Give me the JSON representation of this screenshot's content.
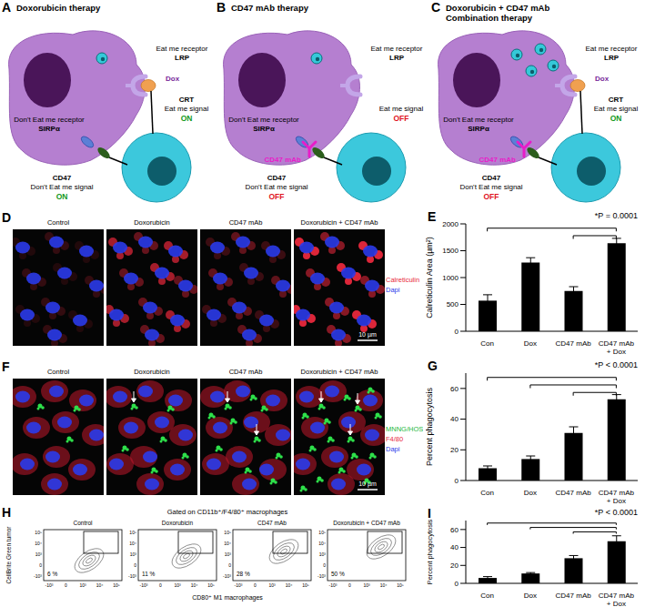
{
  "diagrams": [
    {
      "label": "A",
      "title": [
        "Doxorubicin therapy"
      ],
      "eat_me_receptor": "Eat me receptor",
      "lrp": "LRP",
      "dox": "Dox",
      "crt": "CRT",
      "eat_me_signal": "Eat me signal",
      "eat_me_status": "ON",
      "dont_eat_me_receptor": "Don't Eat me receptor",
      "sirpa": "SIRPα",
      "cd47": "CD47",
      "dont_eat_me_signal": "Don't Eat me signal",
      "dont_eat_me_status": "ON"
    },
    {
      "label": "B",
      "title": [
        "CD47 mAb therapy"
      ],
      "eat_me_receptor": "Eat me receptor",
      "lrp": "LRP",
      "eat_me_signal": "Eat me signal",
      "eat_me_status": "OFF",
      "dont_eat_me_receptor": "Don't Eat me receptor",
      "sirpa": "SIRPα",
      "mab": "CD47 mAb",
      "cd47": "CD47",
      "dont_eat_me_signal": "Don't Eat me signal",
      "dont_eat_me_status": "OFF"
    },
    {
      "label": "C",
      "title": [
        "Doxorubicin + CD47 mAb",
        "Combination therapy"
      ],
      "eat_me_receptor": "Eat me receptor",
      "lrp": "LRP",
      "dox": "Dox",
      "crt": "CRT",
      "eat_me_signal": "Eat me signal",
      "eat_me_status": "ON",
      "dont_eat_me_receptor": "Don't Eat me receptor",
      "sirpa": "SIRPα",
      "mab": "CD47 mAb",
      "cd47": "CD47",
      "dont_eat_me_signal": "Don't Eat me signal",
      "dont_eat_me_status": "OFF"
    }
  ],
  "microscopy": [
    {
      "label": "D",
      "kind": "calreticulin",
      "titles": [
        "Control",
        "Doxorubicin",
        "CD47 mAb",
        "Doxorubicin + CD47 mAb"
      ],
      "legend": [
        {
          "text": "Calreticulin",
          "color": "#e8283c"
        },
        {
          "text": "Dapi",
          "color": "#2b3bea"
        }
      ],
      "scale_bar": "10 µm"
    },
    {
      "label": "F",
      "kind": "phagocytosis",
      "titles": [
        "Control",
        "Doxorubicin",
        "CD47 mAb",
        "Doxorubicin + CD47 mAb"
      ],
      "legend": [
        {
          "text": "MNNG/HOS",
          "color": "#22b83a"
        },
        {
          "text": "F4/80",
          "color": "#e8283c"
        },
        {
          "text": "Dapi",
          "color": "#2b3bea"
        }
      ],
      "scale_bar": "10 µm"
    }
  ],
  "flow": {
    "label": "H",
    "gate_note": "Gated on CD11b⁺/F4/80⁺ macrophages",
    "titles": [
      "Control",
      "Doxorubicin",
      "CD47 mAb",
      "Doxorubicin + CD47 mAb"
    ],
    "percent_labels": [
      "6 %",
      "11 %",
      "28 %",
      "50 %"
    ],
    "y_label": "CellBrite Green tumor",
    "x_label": "CD80⁺ M1 macrophages",
    "y_tick_labels": [
      "10⁵",
      "10⁴",
      "10³",
      "0",
      "-10³"
    ],
    "x_tick_labels": [
      "-10³",
      "0",
      "10³",
      "10⁴",
      "10⁵"
    ]
  },
  "chart_data": [
    {
      "panel": "E",
      "type": "bar",
      "categories": [
        "Con",
        "Dox",
        "CD47 mAb",
        "CD47 mAb + Dox"
      ],
      "values": [
        570,
        1280,
        750,
        1640
      ],
      "errors": [
        110,
        90,
        80,
        90
      ],
      "color": "#000000",
      "y_label": "Calreticulin Area (µm²)",
      "ylim": [
        0,
        2000
      ],
      "yticks": [
        0,
        500,
        1000,
        1500,
        2000
      ],
      "annotation": "*P = 0.0001",
      "comparisons": [
        [
          "Con",
          "CD47 mAb + Dox"
        ],
        [
          "CD47 mAb",
          "CD47 mAb + Dox"
        ]
      ]
    },
    {
      "panel": "G",
      "type": "bar",
      "categories": [
        "Con",
        "Dox",
        "CD47 mAb",
        "CD47 mAb + Dox"
      ],
      "values": [
        8,
        14,
        31,
        53
      ],
      "errors": [
        1.5,
        2,
        4,
        3
      ],
      "color": "#000000",
      "y_label": "Percent phagocytosis",
      "ylim": [
        0,
        70
      ],
      "yticks": [
        0,
        20,
        40,
        60
      ],
      "annotation": "*P < 0.0001",
      "comparisons": [
        [
          "Con",
          "CD47 mAb + Dox"
        ],
        [
          "Dox",
          "CD47 mAb + Dox"
        ],
        [
          "CD47 mAb",
          "CD47 mAb + Dox"
        ]
      ]
    },
    {
      "panel": "I",
      "type": "bar",
      "categories": [
        "Con",
        "Dox",
        "CD47 mAb",
        "CD47 mAb + Dox"
      ],
      "values": [
        6,
        11,
        28,
        47
      ],
      "errors": [
        1.5,
        1,
        3,
        6
      ],
      "color": "#000000",
      "y_label": "Percent phagocytosis",
      "ylim": [
        0,
        70
      ],
      "yticks": [
        0,
        20,
        40,
        60
      ],
      "annotation": "*P < 0.0001",
      "comparisons": [
        [
          "Con",
          "CD47 mAb + Dox"
        ],
        [
          "Dox",
          "CD47 mAb + Dox"
        ],
        [
          "CD47 mAb",
          "CD47 mAb + Dox"
        ]
      ]
    }
  ]
}
